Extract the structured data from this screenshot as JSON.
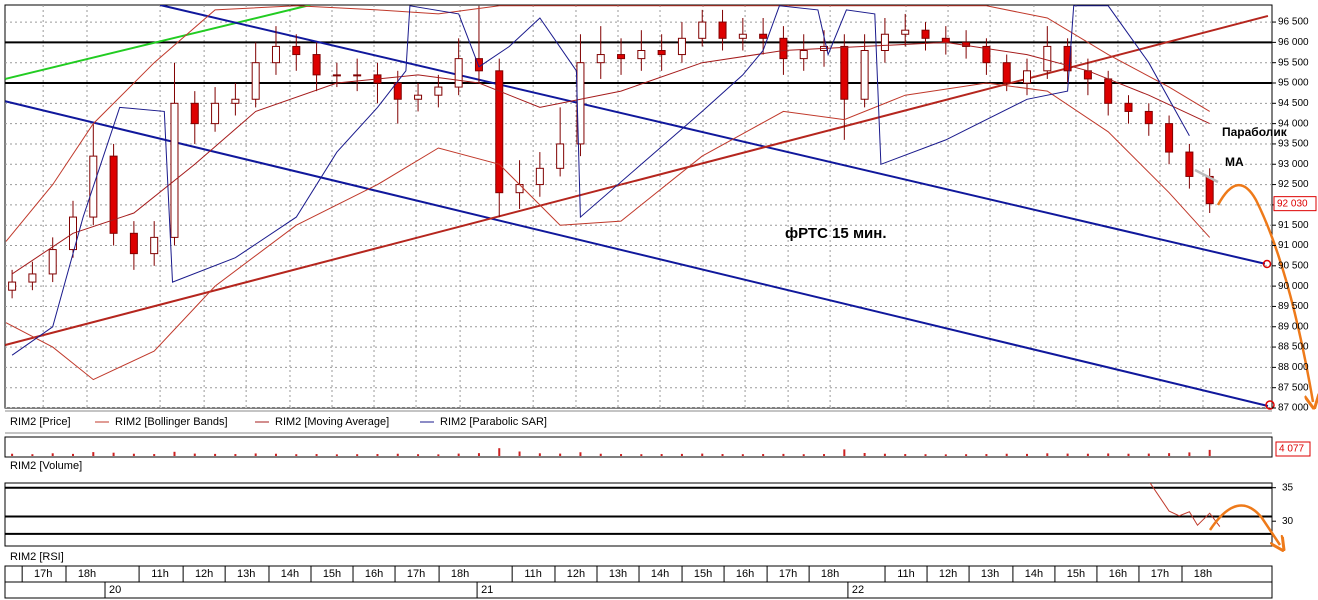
{
  "chart_data": [
    {
      "type": "candlestick",
      "annotations": {
        "title": "фРТС   15 мин.",
        "parabolic_note": "Параболик",
        "ma_note": "МА"
      },
      "series": [
        {
          "name": "RIM2 [Price]",
          "up_color": "#ffffff",
          "down_color": "#dd0000",
          "edge_color": "#800000",
          "open": [
            89900,
            90100,
            90300,
            90900,
            91700,
            93200,
            91300,
            90800,
            91200,
            94500,
            94000,
            94500,
            94600,
            95500,
            95900,
            95700,
            95200,
            95200,
            95200,
            95000,
            94600,
            94700,
            94900,
            95600,
            95300,
            92300,
            92500,
            92900,
            93500,
            95500,
            95700,
            95600,
            95800,
            95700,
            96100,
            96500,
            96100,
            96200,
            96100,
            95600,
            95800,
            95900,
            94600,
            95800,
            96200,
            96300,
            96100,
            96000,
            95900,
            95500,
            95000,
            95300,
            95900,
            95300,
            95100,
            94500,
            94300,
            94000,
            93300,
            92700
          ],
          "high": [
            90400,
            90600,
            91200,
            92100,
            94000,
            93500,
            91600,
            91600,
            95500,
            94800,
            94900,
            95000,
            96000,
            96400,
            96200,
            96000,
            95500,
            95600,
            95500,
            95300,
            95000,
            95200,
            96100,
            96900,
            95600,
            93100,
            93300,
            94400,
            96200,
            96400,
            96100,
            96300,
            96200,
            96500,
            96800,
            96800,
            96600,
            96600,
            96400,
            96200,
            96300,
            96200,
            96200,
            96600,
            96700,
            96500,
            96400,
            96300,
            96100,
            95700,
            95600,
            96400,
            96100,
            95600,
            95300,
            94700,
            94500,
            94200,
            93500,
            92900
          ],
          "low": [
            89700,
            89900,
            90100,
            90700,
            91500,
            91000,
            90400,
            90500,
            91000,
            93500,
            93800,
            94200,
            94400,
            95200,
            95300,
            94800,
            94900,
            94800,
            94500,
            94000,
            94300,
            94400,
            94700,
            95000,
            91700,
            91900,
            92200,
            92700,
            93200,
            95100,
            95200,
            95300,
            95300,
            95500,
            95900,
            95800,
            95800,
            95700,
            95200,
            95300,
            95400,
            93600,
            94400,
            95500,
            95900,
            95800,
            95700,
            95600,
            95200,
            94800,
            94700,
            95100,
            95000,
            94700,
            94200,
            94000,
            93700,
            93000,
            92400,
            91800
          ],
          "close": [
            90100,
            90300,
            90900,
            91700,
            93200,
            91300,
            90800,
            91200,
            94500,
            94000,
            94500,
            94600,
            95500,
            95900,
            95700,
            95200,
            95200,
            95200,
            95000,
            94600,
            94700,
            94900,
            95600,
            95300,
            92300,
            92500,
            92900,
            93500,
            95500,
            95700,
            95600,
            95800,
            95700,
            96100,
            96500,
            96100,
            96200,
            96100,
            95600,
            95800,
            95900,
            94600,
            95800,
            96200,
            96300,
            96100,
            96000,
            95900,
            95500,
            95000,
            95300,
            95900,
            95300,
            95100,
            94500,
            94300,
            94000,
            93300,
            92700,
            92030
          ]
        },
        {
          "name": "RIM2 [Bollinger Bands]",
          "color": "#c0392b",
          "x": [
            -0.3,
            2,
            4,
            7,
            10,
            14,
            18,
            21,
            24,
            27,
            30,
            34,
            38,
            41,
            44,
            48,
            51,
            54,
            57,
            59
          ],
          "upper": [
            91100,
            92500,
            94000,
            95500,
            96800,
            96900,
            96800,
            96700,
            96900,
            96900,
            96900,
            96900,
            96900,
            96900,
            96900,
            96900,
            96600,
            95700,
            94900,
            94300
          ],
          "lower": [
            89100,
            88500,
            87700,
            88400,
            90000,
            91500,
            92500,
            93400,
            93000,
            91500,
            91600,
            93200,
            94300,
            94100,
            94700,
            95000,
            94800,
            93800,
            92300,
            91200
          ]
        },
        {
          "name": "RIM2 [Moving Average]",
          "color": "#a51c1c",
          "x": [
            0,
            3,
            6,
            9,
            12,
            16,
            20,
            23,
            26,
            30,
            34,
            38,
            42,
            46,
            50,
            53,
            56,
            59
          ],
          "values": [
            90300,
            91300,
            91800,
            93000,
            94300,
            95000,
            95200,
            95000,
            94400,
            94800,
            95500,
            95800,
            95900,
            96000,
            95700,
            95300,
            94700,
            94000
          ]
        },
        {
          "name": "RIM2 [Parabolic SAR]",
          "color": "#1a1a8c",
          "x": [
            0,
            2,
            3.5,
            5.3,
            7.5,
            7.9,
            11,
            14,
            16,
            18,
            19.4,
            19.6,
            22,
            23,
            24.5,
            26,
            27.8,
            28,
            31,
            34,
            36,
            37,
            37.8,
            39.7,
            40.2,
            41.1,
            42.5,
            42.8,
            46,
            50,
            52,
            52.3,
            54,
            56,
            58
          ],
          "values": [
            88300,
            89000,
            91700,
            94400,
            94300,
            90100,
            90700,
            91700,
            93300,
            94400,
            95300,
            96900,
            96700,
            95400,
            95900,
            96600,
            95300,
            91700,
            93000,
            94300,
            95200,
            95800,
            96900,
            96800,
            95700,
            96800,
            96700,
            93000,
            93600,
            94600,
            94800,
            96900,
            96900,
            95500,
            93700
          ]
        }
      ],
      "trendlines": [
        {
          "color": "#22cc22",
          "x": [
            -0.34,
            14.68
          ],
          "values": [
            95100,
            96920
          ]
        },
        {
          "color": "#10189c",
          "x": [
            7.29,
            61.72
          ],
          "values": [
            96920,
            90550
          ]
        },
        {
          "color": "#10189c",
          "x": [
            -0.34,
            61.87
          ],
          "values": [
            94550,
            87050
          ]
        },
        {
          "color": "#b5261e",
          "x": [
            -0.34,
            61.87
          ],
          "values": [
            88550,
            96650
          ]
        }
      ],
      "levels": [
        96000,
        95000
      ],
      "last_price": {
        "value": 92030,
        "label": "92 030"
      },
      "xlim": [
        -0.35,
        62.07
      ],
      "ylim": [
        87000,
        96920
      ],
      "yticks": [
        {
          "value": 87000,
          "label": "87 000"
        },
        {
          "value": 87500,
          "label": "87 500"
        },
        {
          "value": 88000,
          "label": "88 000"
        },
        {
          "value": 88500,
          "label": "88 500"
        },
        {
          "value": 89000,
          "label": "89 000"
        },
        {
          "value": 89500,
          "label": "89 500"
        },
        {
          "value": 90000,
          "label": "90 000"
        },
        {
          "value": 90500,
          "label": "90 500"
        },
        {
          "value": 91000,
          "label": "91 000"
        },
        {
          "value": 91500,
          "label": "91 500"
        },
        {
          "value": 92000,
          "label": "92 000"
        },
        {
          "value": 92500,
          "label": "92 500"
        },
        {
          "value": 93000,
          "label": "93 000"
        },
        {
          "value": 93500,
          "label": "93 500"
        },
        {
          "value": 94000,
          "label": "94 000"
        },
        {
          "value": 94500,
          "label": "94 500"
        },
        {
          "value": 95000,
          "label": "95 000"
        },
        {
          "value": 95500,
          "label": "95 500"
        },
        {
          "value": 96000,
          "label": "96 000"
        },
        {
          "value": 96500,
          "label": "96 500"
        }
      ],
      "xticks": [
        {
          "value": 1.53,
          "label": "17h"
        },
        {
          "value": 3.69,
          "label": "18h"
        },
        {
          "value": 7.29,
          "label": "11h"
        },
        {
          "value": 9.46,
          "label": "12h"
        },
        {
          "value": 11.53,
          "label": "13h"
        },
        {
          "value": 13.69,
          "label": "14h"
        },
        {
          "value": 15.76,
          "label": "15h"
        },
        {
          "value": 17.83,
          "label": "16h"
        },
        {
          "value": 19.9,
          "label": "17h"
        },
        {
          "value": 22.07,
          "label": "18h"
        },
        {
          "value": 25.67,
          "label": "11h"
        },
        {
          "value": 27.78,
          "label": "12h"
        },
        {
          "value": 29.85,
          "label": "13h"
        },
        {
          "value": 31.92,
          "label": "14h"
        },
        {
          "value": 34.04,
          "label": "15h"
        },
        {
          "value": 36.11,
          "label": "16h"
        },
        {
          "value": 38.23,
          "label": "17h"
        },
        {
          "value": 40.3,
          "label": "18h"
        },
        {
          "value": 44.04,
          "label": "11h"
        },
        {
          "value": 46.11,
          "label": "12h"
        },
        {
          "value": 48.18,
          "label": "13h"
        },
        {
          "value": 50.34,
          "label": "14h"
        },
        {
          "value": 52.41,
          "label": "15h"
        },
        {
          "value": 54.48,
          "label": "16h"
        },
        {
          "value": 56.55,
          "label": "17h"
        },
        {
          "value": 58.67,
          "label": "18h"
        }
      ],
      "date_ticks": [
        {
          "value": 5.07,
          "label": "20"
        },
        {
          "value": 23.4,
          "label": "21"
        },
        {
          "value": 41.67,
          "label": "22"
        }
      ],
      "grid": true
    },
    {
      "type": "bar",
      "title": "RIM2 [Volume]",
      "color": "#cc2222",
      "values": [
        1500,
        1200,
        1800,
        1400,
        2600,
        2200,
        1500,
        1300,
        2800,
        1600,
        1400,
        1300,
        1700,
        1500,
        1200,
        1300,
        1100,
        1200,
        1300,
        1500,
        1200,
        1100,
        1600,
        1900,
        5200,
        3000,
        1800,
        1600,
        2500,
        1500,
        1300,
        1200,
        1300,
        1400,
        1600,
        1300,
        1200,
        1300,
        1400,
        1200,
        1300,
        4400,
        2000,
        1500,
        1300,
        1200,
        1100,
        1200,
        1300,
        1500,
        1400,
        1800,
        1600,
        1500,
        1700,
        1500,
        1600,
        1900,
        2400,
        4077
      ],
      "ylim": [
        0,
        12000
      ],
      "last_label": {
        "value": 4077,
        "label": "4 077"
      }
    },
    {
      "type": "line",
      "title": "RIM2 [RSI]",
      "color": "#c0392b",
      "x": [
        56,
        57,
        57.5,
        58,
        58.4,
        59,
        59.5
      ],
      "values": [
        36,
        31.5,
        30.8,
        31.4,
        29.4,
        31.2,
        29.2
      ],
      "levels": [
        35,
        30.7,
        28.1
      ],
      "ylim": [
        26.3,
        35.7
      ],
      "yticks": [
        30,
        35
      ]
    }
  ]
}
